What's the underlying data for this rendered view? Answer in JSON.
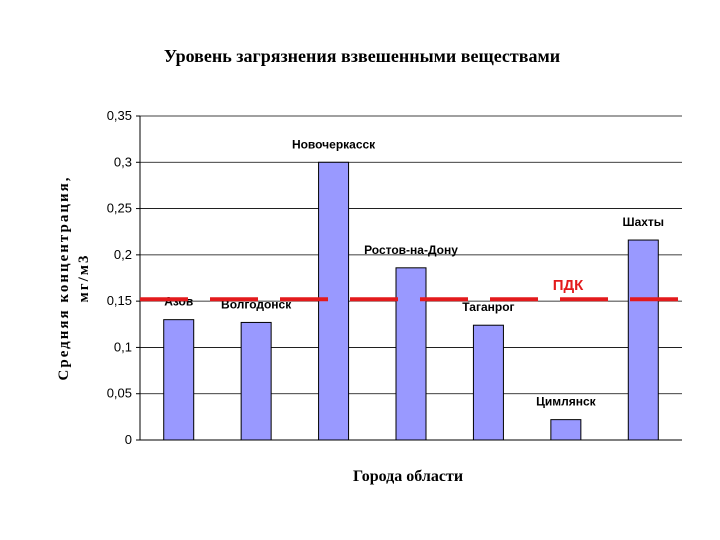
{
  "chart_data": {
    "type": "bar",
    "title": "Уровень загрязнения взвешенными веществами",
    "xlabel": "Города области",
    "ylabel_line1": "Средняя концентрация,",
    "ylabel_line2": "мг/м3",
    "categories": [
      "Азов",
      "Волгодонск",
      "Новочеркасск",
      "Ростов-на-Дону",
      "Таганрог",
      "Цимлянск",
      "Шахты"
    ],
    "values": [
      0.13,
      0.127,
      0.3,
      0.186,
      0.124,
      0.022,
      0.216
    ],
    "ylim": [
      0,
      0.35
    ],
    "yticks": [
      0,
      0.05,
      0.1,
      0.15,
      0.2,
      0.25,
      0.3,
      0.35
    ],
    "ytick_labels": [
      "0",
      "0,05",
      "0,1",
      "0,15",
      "0,2",
      "0,25",
      "0,3",
      "0,35"
    ],
    "grid": true,
    "reference_line": {
      "label": "ПДК",
      "value": 0.152,
      "color": "#e31a1c"
    },
    "bar_color": "#9999ff",
    "bar_edge_color": "#000000"
  }
}
